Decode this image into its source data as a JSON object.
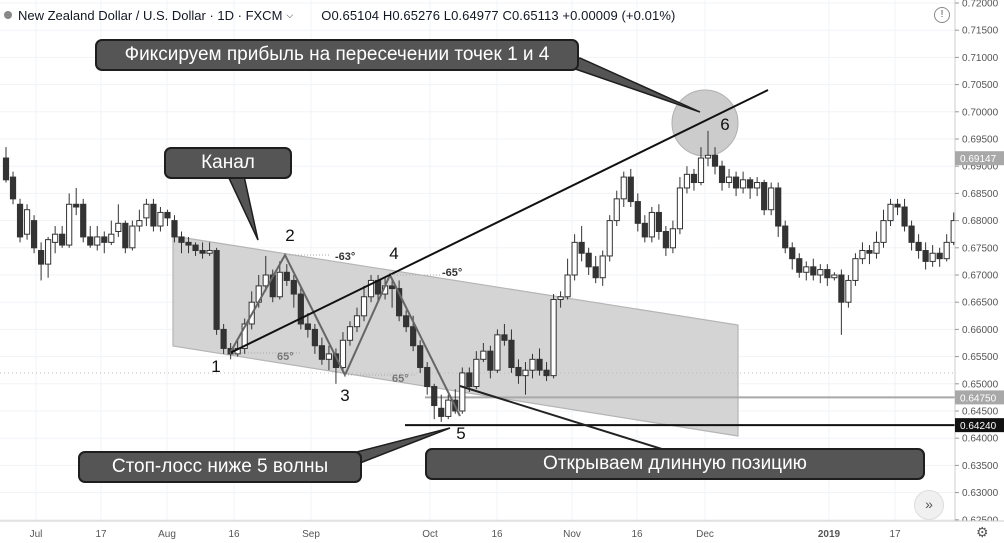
{
  "header": {
    "symbol": "New Zealand Dollar / U.S. Dollar · 1D · FXCM",
    "ohlc": "O0.65104  H0.65276  L0.64977  C0.65113  +0.00009 (+0.01%)"
  },
  "callouts": {
    "take_profit": "Фиксируем прибыль на пересечении точек 1 и 4",
    "channel": "Канал",
    "stop_loss": "Стоп-лосс ниже 5 волны",
    "open_long": "Открываем длинную позицию"
  },
  "point_labels": [
    "1",
    "2",
    "3",
    "4",
    "5",
    "6"
  ],
  "angle_labels": [
    "-63°",
    "-65°",
    "65°",
    "65°"
  ],
  "chart_data": {
    "type": "candlestick",
    "x_ticks": [
      "Jul",
      "17",
      "Aug",
      "16",
      "Sep",
      "Oct",
      "16",
      "Nov",
      "16",
      "Dec",
      "2019",
      "17"
    ],
    "y_ticks": [
      "0.72000",
      "0.71500",
      "0.71000",
      "0.70500",
      "0.70000",
      "0.69500",
      "0.69000",
      "0.68500",
      "0.68000",
      "0.67500",
      "0.67000",
      "0.66500",
      "0.66000",
      "0.65500",
      "0.65000",
      "0.64500",
      "0.64000",
      "0.63500",
      "0.63000",
      "0.62500"
    ],
    "ylim": [
      0.6235,
      0.7205
    ],
    "price_labels": [
      {
        "value": 0.69147,
        "text": "0.69147",
        "bg": "#a8a8a8"
      },
      {
        "value": 0.6475,
        "text": "0.64750",
        "bg": "#a8a8a8"
      },
      {
        "value": 0.6424,
        "text": "0.64240",
        "bg": "#111111"
      }
    ],
    "horizontal_lines": [
      {
        "value": 0.6475,
        "color": "#a8a8a8"
      },
      {
        "value": 0.6424,
        "color": "#111111"
      }
    ],
    "candles": [
      [
        0.6915,
        0.6875,
        0.6935,
        0.687
      ],
      [
        0.688,
        0.684,
        0.689,
        0.683
      ],
      [
        0.683,
        0.677,
        0.684,
        0.676
      ],
      [
        0.6775,
        0.682,
        0.683,
        0.6765
      ],
      [
        0.68,
        0.675,
        0.681,
        0.674
      ],
      [
        0.6745,
        0.672,
        0.676,
        0.669
      ],
      [
        0.672,
        0.6765,
        0.677,
        0.6695
      ],
      [
        0.676,
        0.6775,
        0.679,
        0.674
      ],
      [
        0.6775,
        0.6755,
        0.679,
        0.675
      ],
      [
        0.6755,
        0.683,
        0.685,
        0.675
      ],
      [
        0.683,
        0.6825,
        0.686,
        0.681
      ],
      [
        0.683,
        0.677,
        0.684,
        0.676
      ],
      [
        0.677,
        0.6755,
        0.679,
        0.675
      ],
      [
        0.6755,
        0.677,
        0.679,
        0.6745
      ],
      [
        0.677,
        0.676,
        0.678,
        0.674
      ],
      [
        0.676,
        0.6775,
        0.68,
        0.6755
      ],
      [
        0.678,
        0.6795,
        0.683,
        0.677
      ],
      [
        0.6795,
        0.675,
        0.68,
        0.674
      ],
      [
        0.675,
        0.679,
        0.68,
        0.6745
      ],
      [
        0.679,
        0.68,
        0.682,
        0.678
      ],
      [
        0.6805,
        0.683,
        0.684,
        0.679
      ],
      [
        0.683,
        0.679,
        0.684,
        0.678
      ],
      [
        0.679,
        0.6815,
        0.6825,
        0.678
      ],
      [
        0.6815,
        0.6805,
        0.682,
        0.679
      ],
      [
        0.68,
        0.677,
        0.681,
        0.676
      ],
      [
        0.677,
        0.676,
        0.678,
        0.674
      ],
      [
        0.676,
        0.6755,
        0.677,
        0.674
      ],
      [
        0.6755,
        0.6745,
        0.676,
        0.6735
      ],
      [
        0.6745,
        0.674,
        0.676,
        0.673
      ],
      [
        0.674,
        0.6745,
        0.676,
        0.6735
      ],
      [
        0.6745,
        0.66,
        0.675,
        0.659
      ],
      [
        0.66,
        0.6565,
        0.661,
        0.6555
      ],
      [
        0.6565,
        0.6555,
        0.6575,
        0.6545
      ],
      [
        0.6555,
        0.6565,
        0.658,
        0.655
      ],
      [
        0.6565,
        0.661,
        0.662,
        0.6555
      ],
      [
        0.661,
        0.665,
        0.667,
        0.66
      ],
      [
        0.665,
        0.668,
        0.67,
        0.664
      ],
      [
        0.668,
        0.67,
        0.6735,
        0.667
      ],
      [
        0.67,
        0.666,
        0.671,
        0.665
      ],
      [
        0.666,
        0.6705,
        0.6725,
        0.6655
      ],
      [
        0.6705,
        0.669,
        0.672,
        0.668
      ],
      [
        0.669,
        0.6665,
        0.67,
        0.664
      ],
      [
        0.6665,
        0.661,
        0.668,
        0.66
      ],
      [
        0.661,
        0.66,
        0.663,
        0.6585
      ],
      [
        0.66,
        0.657,
        0.661,
        0.6555
      ],
      [
        0.657,
        0.6545,
        0.6585,
        0.6535
      ],
      [
        0.6545,
        0.6555,
        0.657,
        0.6525
      ],
      [
        0.6555,
        0.653,
        0.6565,
        0.65
      ],
      [
        0.653,
        0.658,
        0.6595,
        0.652
      ],
      [
        0.658,
        0.6605,
        0.6615,
        0.657
      ],
      [
        0.6605,
        0.6625,
        0.664,
        0.6595
      ],
      [
        0.6625,
        0.666,
        0.668,
        0.6615
      ],
      [
        0.666,
        0.669,
        0.67,
        0.665
      ],
      [
        0.669,
        0.6665,
        0.67,
        0.665
      ],
      [
        0.6665,
        0.668,
        0.6695,
        0.6655
      ],
      [
        0.668,
        0.6675,
        0.669,
        0.664
      ],
      [
        0.6675,
        0.6625,
        0.669,
        0.6615
      ],
      [
        0.6625,
        0.6605,
        0.6635,
        0.6595
      ],
      [
        0.6605,
        0.657,
        0.6625,
        0.656
      ],
      [
        0.657,
        0.653,
        0.658,
        0.652
      ],
      [
        0.653,
        0.6495,
        0.654,
        0.648
      ],
      [
        0.6495,
        0.646,
        0.65,
        0.6435
      ],
      [
        0.6455,
        0.644,
        0.648,
        0.643
      ],
      [
        0.644,
        0.647,
        0.648,
        0.6435
      ],
      [
        0.647,
        0.645,
        0.649,
        0.6445
      ],
      [
        0.645,
        0.652,
        0.653,
        0.6445
      ],
      [
        0.652,
        0.6495,
        0.653,
        0.6485
      ],
      [
        0.6495,
        0.6545,
        0.656,
        0.649
      ],
      [
        0.6545,
        0.656,
        0.6575,
        0.654
      ],
      [
        0.656,
        0.6525,
        0.657,
        0.651
      ],
      [
        0.6525,
        0.659,
        0.66,
        0.652
      ],
      [
        0.659,
        0.658,
        0.661,
        0.657
      ],
      [
        0.658,
        0.653,
        0.66,
        0.652
      ],
      [
        0.653,
        0.6515,
        0.6545,
        0.65
      ],
      [
        0.6515,
        0.6525,
        0.654,
        0.648
      ],
      [
        0.6525,
        0.6545,
        0.6555,
        0.651
      ],
      [
        0.6545,
        0.6525,
        0.6565,
        0.6515
      ],
      [
        0.6525,
        0.6515,
        0.654,
        0.6505
      ],
      [
        0.6515,
        0.6655,
        0.6665,
        0.651
      ],
      [
        0.6655,
        0.666,
        0.667,
        0.664
      ],
      [
        0.666,
        0.67,
        0.673,
        0.6655
      ],
      [
        0.67,
        0.676,
        0.6775,
        0.669
      ],
      [
        0.676,
        0.674,
        0.679,
        0.6725
      ],
      [
        0.674,
        0.6715,
        0.675,
        0.67
      ],
      [
        0.6715,
        0.6695,
        0.6735,
        0.6685
      ],
      [
        0.6695,
        0.6735,
        0.6745,
        0.668
      ],
      [
        0.6735,
        0.68,
        0.681,
        0.6725
      ],
      [
        0.68,
        0.684,
        0.6855,
        0.679
      ],
      [
        0.684,
        0.688,
        0.689,
        0.6825
      ],
      [
        0.688,
        0.6835,
        0.6895,
        0.6825
      ],
      [
        0.6835,
        0.6795,
        0.685,
        0.678
      ],
      [
        0.6795,
        0.677,
        0.681,
        0.676
      ],
      [
        0.677,
        0.6815,
        0.6825,
        0.676
      ],
      [
        0.6815,
        0.678,
        0.683,
        0.6765
      ],
      [
        0.678,
        0.675,
        0.679,
        0.6735
      ],
      [
        0.675,
        0.6785,
        0.68,
        0.674
      ],
      [
        0.6785,
        0.686,
        0.688,
        0.6775
      ],
      [
        0.686,
        0.6885,
        0.69,
        0.685
      ],
      [
        0.6885,
        0.687,
        0.6895,
        0.6855
      ],
      [
        0.687,
        0.6915,
        0.6935,
        0.6865
      ],
      [
        0.6915,
        0.692,
        0.6965,
        0.69
      ],
      [
        0.692,
        0.69,
        0.6935,
        0.6885
      ],
      [
        0.69,
        0.687,
        0.691,
        0.6855
      ],
      [
        0.687,
        0.688,
        0.6895,
        0.686
      ],
      [
        0.688,
        0.686,
        0.689,
        0.6845
      ],
      [
        0.686,
        0.6875,
        0.689,
        0.685
      ],
      [
        0.6875,
        0.686,
        0.688,
        0.684
      ],
      [
        0.686,
        0.687,
        0.688,
        0.6845
      ],
      [
        0.687,
        0.682,
        0.6875,
        0.681
      ],
      [
        0.682,
        0.686,
        0.687,
        0.681
      ],
      [
        0.686,
        0.679,
        0.687,
        0.677
      ],
      [
        0.679,
        0.675,
        0.68,
        0.674
      ],
      [
        0.675,
        0.673,
        0.676,
        0.671
      ],
      [
        0.673,
        0.6705,
        0.674,
        0.6695
      ],
      [
        0.6705,
        0.6715,
        0.6725,
        0.669
      ],
      [
        0.6715,
        0.67,
        0.673,
        0.669
      ],
      [
        0.67,
        0.671,
        0.672,
        0.6685
      ],
      [
        0.671,
        0.6695,
        0.672,
        0.668
      ],
      [
        0.6695,
        0.67,
        0.6705,
        0.669
      ],
      [
        0.67,
        0.665,
        0.671,
        0.659
      ],
      [
        0.665,
        0.669,
        0.67,
        0.664
      ],
      [
        0.669,
        0.673,
        0.674,
        0.668
      ],
      [
        0.673,
        0.6745,
        0.676,
        0.672
      ],
      [
        0.6745,
        0.674,
        0.6755,
        0.672
      ],
      [
        0.674,
        0.676,
        0.678,
        0.673
      ],
      [
        0.676,
        0.68,
        0.682,
        0.675
      ],
      [
        0.68,
        0.683,
        0.684,
        0.679
      ],
      [
        0.683,
        0.6825,
        0.684,
        0.681
      ],
      [
        0.6825,
        0.679,
        0.684,
        0.678
      ],
      [
        0.679,
        0.676,
        0.68,
        0.6745
      ],
      [
        0.676,
        0.6745,
        0.6775,
        0.673
      ],
      [
        0.6745,
        0.6725,
        0.676,
        0.671
      ],
      [
        0.6725,
        0.674,
        0.6755,
        0.6715
      ],
      [
        0.674,
        0.673,
        0.675,
        0.6715
      ],
      [
        0.673,
        0.676,
        0.6775,
        0.6725
      ],
      [
        0.676,
        0.68,
        0.6815,
        0.6755
      ],
      [
        0.68,
        0.683,
        0.684,
        0.679
      ],
      [
        0.683,
        0.6825,
        0.6845,
        0.681
      ],
      [
        0.6825,
        0.687,
        0.691,
        0.682
      ]
    ]
  }
}
